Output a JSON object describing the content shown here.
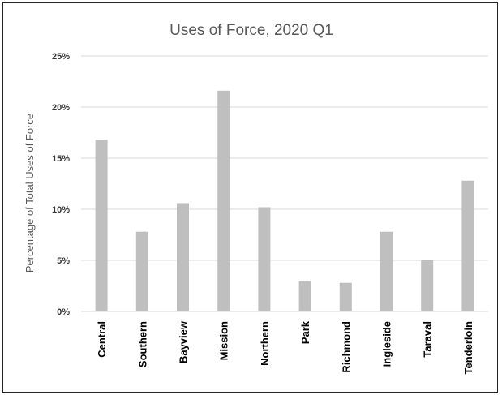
{
  "chart_data": {
    "type": "bar",
    "title": "Uses of Force, 2020 Q1",
    "xlabel": "",
    "ylabel": "Percentage of Total Uses of Force",
    "categories": [
      "Central",
      "Southern",
      "Bayview",
      "Mission",
      "Northern",
      "Park",
      "Richmond",
      "Ingleside",
      "Taraval",
      "Tenderloin"
    ],
    "values": [
      16.8,
      7.8,
      10.6,
      21.6,
      10.2,
      3.0,
      2.8,
      7.8,
      5.0,
      12.8
    ],
    "value_unit": "percent",
    "ylim": [
      0,
      25
    ],
    "yticks": [
      0,
      5,
      10,
      15,
      20,
      25
    ],
    "ytick_labels": [
      "0%",
      "5%",
      "10%",
      "15%",
      "20%",
      "25%"
    ],
    "grid": true,
    "legend": "none",
    "colors": {
      "bar": "#bfbfbf",
      "grid": "#d9d9d9",
      "title": "#595959",
      "axis_label": "#595959",
      "frame": "#222222"
    }
  }
}
